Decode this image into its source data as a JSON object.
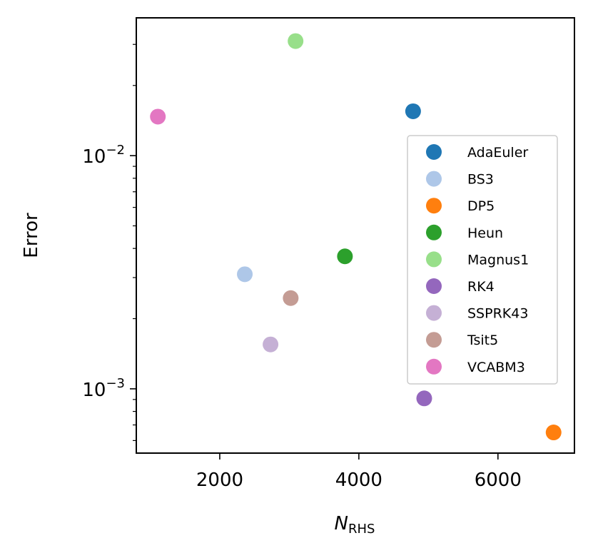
{
  "chart_data": {
    "type": "scatter",
    "xlabel_main": "N",
    "xlabel_sub": "RHS",
    "ylabel": "Error",
    "xlim": [
      800,
      7100
    ],
    "ylim": [
      0.00053,
      0.039
    ],
    "yscale": "log",
    "x_ticks": [
      {
        "value": 2000,
        "label": "2000"
      },
      {
        "value": 4000,
        "label": "4000"
      },
      {
        "value": 6000,
        "label": "6000"
      }
    ],
    "y_major_ticks": [
      {
        "value": 0.001,
        "base": "10",
        "exp": "−3"
      },
      {
        "value": 0.01,
        "base": "10",
        "exp": "−2"
      }
    ],
    "legend_position": "center-right",
    "grid": false,
    "series": [
      {
        "name": "AdaEuler",
        "color": "#1f77b4",
        "x": 4780,
        "y": 0.0155
      },
      {
        "name": "BS3",
        "color": "#aec7e8",
        "x": 2360,
        "y": 0.0031
      },
      {
        "name": "DP5",
        "color": "#ff7f0e",
        "x": 6800,
        "y": 0.00065
      },
      {
        "name": "Heun",
        "color": "#2ca02c",
        "x": 3800,
        "y": 0.0037
      },
      {
        "name": "Magnus1",
        "color": "#98df8a",
        "x": 3090,
        "y": 0.031
      },
      {
        "name": "RK4",
        "color": "#9467bd",
        "x": 4940,
        "y": 0.00091
      },
      {
        "name": "SSPRK43",
        "color": "#c5b0d5",
        "x": 2730,
        "y": 0.00155
      },
      {
        "name": "Tsit5",
        "color": "#c49c94",
        "x": 3020,
        "y": 0.00245
      },
      {
        "name": "VCABM3",
        "color": "#e377c2",
        "x": 1110,
        "y": 0.0147
      }
    ]
  }
}
